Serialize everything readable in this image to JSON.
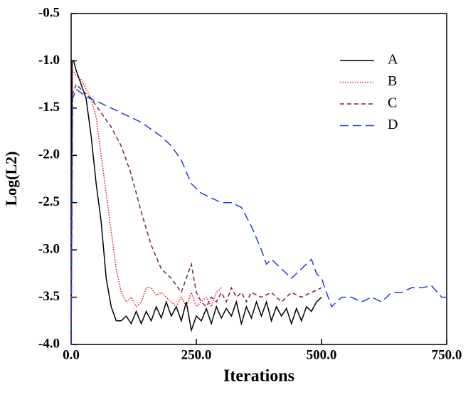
{
  "chart_data": {
    "type": "line",
    "xlabel": "Iterations",
    "ylabel": "Log(L2)",
    "xlim": [
      0,
      750
    ],
    "ylim": [
      -4,
      -0.5
    ],
    "xticks": [
      {
        "value": 0,
        "label": "0.0"
      },
      {
        "value": 250,
        "label": "250.0"
      },
      {
        "value": 500,
        "label": "500.0"
      },
      {
        "value": 750,
        "label": "750.0"
      }
    ],
    "yticks": [
      {
        "value": -4,
        "label": "-4.0"
      },
      -3.5,
      {
        "value": -3,
        "label": "-3.0"
      },
      -2.5,
      {
        "value": -2,
        "label": "-2.0"
      },
      -1.5,
      {
        "value": -1,
        "label": "-1.0"
      },
      -0.5
    ],
    "legend": "upper right",
    "series": [
      {
        "name": "A",
        "color": "#000000",
        "dash": "solid",
        "x": [
          0,
          2,
          5,
          10,
          20,
          30,
          40,
          50,
          60,
          70,
          80,
          90,
          100,
          110,
          120,
          130,
          140,
          150,
          160,
          170,
          180,
          190,
          200,
          210,
          220,
          230,
          240,
          250,
          260,
          270,
          280,
          290,
          300,
          310,
          320,
          330,
          340,
          350,
          360,
          370,
          380,
          390,
          400,
          410,
          420,
          430,
          440,
          450,
          460,
          470,
          480,
          490,
          500
        ],
        "values": [
          -4,
          -1,
          -1,
          -1.1,
          -1.25,
          -1.4,
          -1.8,
          -2.3,
          -2.7,
          -3.3,
          -3.6,
          -3.75,
          -3.75,
          -3.7,
          -3.78,
          -3.65,
          -3.78,
          -3.65,
          -3.75,
          -3.6,
          -3.72,
          -3.55,
          -3.7,
          -3.6,
          -3.75,
          -3.55,
          -3.85,
          -3.7,
          -3.75,
          -3.62,
          -3.78,
          -3.6,
          -3.72,
          -3.62,
          -3.7,
          -3.55,
          -3.78,
          -3.6,
          -3.72,
          -3.55,
          -3.7,
          -3.55,
          -3.75,
          -3.6,
          -3.7,
          -3.62,
          -3.78,
          -3.62,
          -3.75,
          -3.6,
          -3.65,
          -3.55,
          -3.5
        ]
      },
      {
        "name": "B",
        "color": "#e0191b",
        "dash": "dotted",
        "x": [
          0,
          3,
          10,
          20,
          30,
          40,
          50,
          60,
          70,
          80,
          90,
          100,
          110,
          120,
          130,
          140,
          150,
          160,
          170,
          180,
          190,
          200,
          210,
          220,
          230,
          240,
          250,
          260,
          270,
          280,
          290,
          300
        ],
        "values": [
          -4,
          -1.1,
          -1.15,
          -1.2,
          -1.3,
          -1.4,
          -1.6,
          -2,
          -2.4,
          -2.8,
          -3.2,
          -3.45,
          -3.55,
          -3.5,
          -3.6,
          -3.55,
          -3.4,
          -3.4,
          -3.48,
          -3.45,
          -3.5,
          -3.55,
          -3.6,
          -3.5,
          -3.6,
          -3.45,
          -3.6,
          -3.55,
          -3.5,
          -3.6,
          -3.45,
          -3.4
        ]
      },
      {
        "name": "C",
        "color": "#7b1e52",
        "dash": "dashed",
        "x": [
          0,
          3,
          10,
          20,
          40,
          60,
          80,
          100,
          120,
          140,
          160,
          180,
          200,
          220,
          230,
          240,
          250,
          260,
          270,
          280,
          290,
          300,
          310,
          320,
          330,
          340,
          350,
          360,
          380,
          400,
          420,
          440,
          460,
          480,
          500
        ],
        "values": [
          -4,
          -1.35,
          -1.25,
          -1.3,
          -1.4,
          -1.55,
          -1.7,
          -1.9,
          -2.2,
          -2.6,
          -2.95,
          -3.2,
          -3.3,
          -3.45,
          -3.3,
          -3.15,
          -3.45,
          -3.55,
          -3.6,
          -3.5,
          -3.55,
          -3.45,
          -3.55,
          -3.4,
          -3.5,
          -3.45,
          -3.55,
          -3.45,
          -3.5,
          -3.45,
          -3.55,
          -3.45,
          -3.5,
          -3.45,
          -3.4
        ]
      },
      {
        "name": "D",
        "color": "#1c3fd6",
        "dash": "longdash",
        "x": [
          0,
          3,
          10,
          30,
          60,
          100,
          140,
          180,
          200,
          220,
          240,
          260,
          280,
          300,
          320,
          340,
          360,
          380,
          390,
          400,
          420,
          440,
          460,
          480,
          490,
          500,
          520,
          540,
          560,
          580,
          600,
          620,
          640,
          660,
          680,
          700,
          720,
          740,
          750
        ],
        "values": [
          -4,
          -1.4,
          -1.3,
          -1.38,
          -1.45,
          -1.55,
          -1.65,
          -1.8,
          -1.9,
          -2.05,
          -2.3,
          -2.4,
          -2.45,
          -2.5,
          -2.5,
          -2.55,
          -2.75,
          -3,
          -3.15,
          -3.1,
          -3.2,
          -3.3,
          -3.2,
          -3.1,
          -3.25,
          -3.3,
          -3.6,
          -3.5,
          -3.5,
          -3.55,
          -3.5,
          -3.55,
          -3.45,
          -3.45,
          -3.4,
          -3.4,
          -3.38,
          -3.5,
          -3.5
        ]
      }
    ]
  }
}
